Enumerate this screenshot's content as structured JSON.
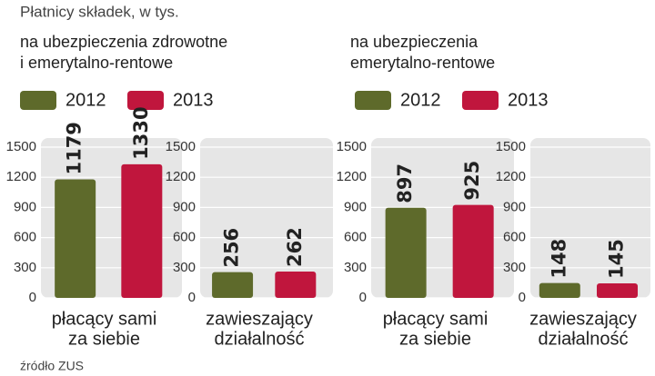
{
  "title": "Płatnicy składek, w tys.",
  "source": "źródło ZUS",
  "chart_data": [
    {
      "type": "bar",
      "title": [
        "na ubezpieczenia zdrowotne",
        "i emerytalno-rentowe"
      ],
      "legend": true,
      "xlabel": [
        "płacący sami",
        "za siebie"
      ],
      "series": [
        {
          "name": "2012",
          "color": "#5e6a2b",
          "values": [
            1179
          ]
        },
        {
          "name": "2013",
          "color": "#c0163d",
          "values": [
            1330
          ]
        }
      ],
      "ylim": [
        0,
        1500
      ],
      "yticks": [
        0,
        300,
        600,
        900,
        1200,
        1500
      ],
      "grid": true
    },
    {
      "type": "bar",
      "xlabel": [
        "zawieszający",
        "działalność"
      ],
      "series": [
        {
          "name": "2012",
          "color": "#5e6a2b",
          "values": [
            256
          ]
        },
        {
          "name": "2013",
          "color": "#c0163d",
          "values": [
            262
          ]
        }
      ],
      "ylim": [
        0,
        1500
      ],
      "yticks": [
        0,
        300,
        600,
        900,
        1200,
        1500
      ],
      "grid": true
    },
    {
      "type": "bar",
      "title": [
        "na ubezpieczenia",
        "emerytalno-rentowe"
      ],
      "legend": true,
      "xlabel": [
        "płacący sami",
        "za siebie"
      ],
      "series": [
        {
          "name": "2012",
          "color": "#5e6a2b",
          "values": [
            897
          ]
        },
        {
          "name": "2013",
          "color": "#c0163d",
          "values": [
            925
          ]
        }
      ],
      "ylim": [
        0,
        1500
      ],
      "yticks": [
        0,
        300,
        600,
        900,
        1200,
        1500
      ],
      "grid": true
    },
    {
      "type": "bar",
      "xlabel": [
        "zawieszający",
        "działalność"
      ],
      "series": [
        {
          "name": "2012",
          "color": "#5e6a2b",
          "values": [
            148
          ]
        },
        {
          "name": "2013",
          "color": "#c0163d",
          "values": [
            145
          ]
        }
      ],
      "ylim": [
        0,
        1500
      ],
      "yticks": [
        0,
        300,
        600,
        900,
        1200,
        1500
      ],
      "grid": true
    }
  ]
}
